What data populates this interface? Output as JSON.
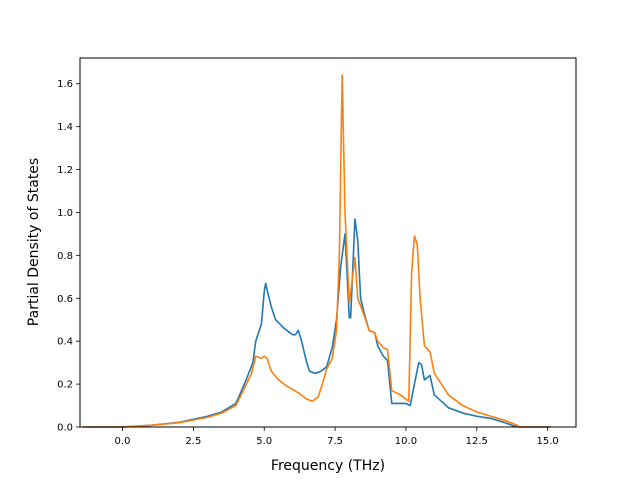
{
  "chart_data": {
    "type": "line",
    "title": "",
    "xlabel": "Frequency (THz)",
    "ylabel": "Partial Density of States",
    "xlim": [
      -1.5,
      16.0
    ],
    "ylim": [
      0.0,
      1.72
    ],
    "xticks": [
      0.0,
      2.5,
      5.0,
      7.5,
      10.0,
      12.5,
      15.0
    ],
    "xtick_labels": [
      "0.0",
      "2.5",
      "5.0",
      "7.5",
      "10.0",
      "12.5",
      "15.0"
    ],
    "yticks": [
      0.0,
      0.2,
      0.4,
      0.6,
      0.8,
      1.0,
      1.2,
      1.4,
      1.6
    ],
    "ytick_labels": [
      "0.0",
      "0.2",
      "0.4",
      "0.6",
      "0.8",
      "1.0",
      "1.2",
      "1.4",
      "1.6"
    ],
    "grid": false,
    "legend": "none",
    "series": [
      {
        "color": "#1f77b4",
        "points": [
          [
            -1.4,
            0.0
          ],
          [
            0.0,
            0.0
          ],
          [
            1.0,
            0.008
          ],
          [
            2.0,
            0.022
          ],
          [
            3.0,
            0.05
          ],
          [
            3.5,
            0.07
          ],
          [
            4.0,
            0.11
          ],
          [
            4.3,
            0.2
          ],
          [
            4.6,
            0.3
          ],
          [
            4.7,
            0.4
          ],
          [
            4.9,
            0.48
          ],
          [
            5.0,
            0.63
          ],
          [
            5.05,
            0.67
          ],
          [
            5.1,
            0.64
          ],
          [
            5.25,
            0.56
          ],
          [
            5.4,
            0.5
          ],
          [
            5.7,
            0.46
          ],
          [
            6.0,
            0.43
          ],
          [
            6.1,
            0.43
          ],
          [
            6.2,
            0.45
          ],
          [
            6.3,
            0.41
          ],
          [
            6.5,
            0.3
          ],
          [
            6.6,
            0.26
          ],
          [
            6.8,
            0.25
          ],
          [
            7.0,
            0.26
          ],
          [
            7.2,
            0.28
          ],
          [
            7.4,
            0.37
          ],
          [
            7.55,
            0.5
          ],
          [
            7.7,
            0.75
          ],
          [
            7.85,
            0.9
          ],
          [
            8.0,
            0.51
          ],
          [
            8.05,
            0.51
          ],
          [
            8.2,
            0.97
          ],
          [
            8.3,
            0.87
          ],
          [
            8.4,
            0.6
          ],
          [
            8.55,
            0.52
          ],
          [
            8.7,
            0.45
          ],
          [
            8.9,
            0.44
          ],
          [
            9.0,
            0.38
          ],
          [
            9.2,
            0.33
          ],
          [
            9.35,
            0.31
          ],
          [
            9.5,
            0.11
          ],
          [
            10.0,
            0.11
          ],
          [
            10.15,
            0.1
          ],
          [
            10.3,
            0.2
          ],
          [
            10.45,
            0.3
          ],
          [
            10.55,
            0.29
          ],
          [
            10.65,
            0.22
          ],
          [
            10.85,
            0.24
          ],
          [
            11.0,
            0.15
          ],
          [
            11.5,
            0.09
          ],
          [
            12.0,
            0.065
          ],
          [
            12.5,
            0.05
          ],
          [
            13.0,
            0.04
          ],
          [
            13.5,
            0.02
          ],
          [
            13.8,
            0.005
          ],
          [
            14.0,
            0.0
          ],
          [
            15.1,
            0.0
          ]
        ]
      },
      {
        "color": "#ff7f0e",
        "points": [
          [
            -1.4,
            0.0
          ],
          [
            0.0,
            0.0
          ],
          [
            1.0,
            0.008
          ],
          [
            2.0,
            0.02
          ],
          [
            3.0,
            0.045
          ],
          [
            3.5,
            0.065
          ],
          [
            4.0,
            0.1
          ],
          [
            4.3,
            0.18
          ],
          [
            4.55,
            0.25
          ],
          [
            4.7,
            0.33
          ],
          [
            4.9,
            0.32
          ],
          [
            5.0,
            0.33
          ],
          [
            5.1,
            0.32
          ],
          [
            5.25,
            0.26
          ],
          [
            5.5,
            0.22
          ],
          [
            5.8,
            0.19
          ],
          [
            6.2,
            0.16
          ],
          [
            6.5,
            0.13
          ],
          [
            6.7,
            0.12
          ],
          [
            6.9,
            0.14
          ],
          [
            7.05,
            0.2
          ],
          [
            7.2,
            0.27
          ],
          [
            7.4,
            0.32
          ],
          [
            7.55,
            0.45
          ],
          [
            7.65,
            0.8
          ],
          [
            7.75,
            1.64
          ],
          [
            7.85,
            1.0
          ],
          [
            8.0,
            0.58
          ],
          [
            8.1,
            0.68
          ],
          [
            8.2,
            0.79
          ],
          [
            8.3,
            0.6
          ],
          [
            8.5,
            0.53
          ],
          [
            8.7,
            0.45
          ],
          [
            8.9,
            0.44
          ],
          [
            9.0,
            0.4
          ],
          [
            9.2,
            0.37
          ],
          [
            9.35,
            0.36
          ],
          [
            9.5,
            0.17
          ],
          [
            9.8,
            0.15
          ],
          [
            10.1,
            0.12
          ],
          [
            10.2,
            0.72
          ],
          [
            10.3,
            0.89
          ],
          [
            10.4,
            0.85
          ],
          [
            10.5,
            0.6
          ],
          [
            10.65,
            0.38
          ],
          [
            10.85,
            0.35
          ],
          [
            11.0,
            0.25
          ],
          [
            11.5,
            0.15
          ],
          [
            12.0,
            0.1
          ],
          [
            12.5,
            0.07
          ],
          [
            13.0,
            0.05
          ],
          [
            13.5,
            0.03
          ],
          [
            13.9,
            0.01
          ],
          [
            14.0,
            0.0
          ],
          [
            15.1,
            0.0
          ]
        ]
      }
    ]
  }
}
